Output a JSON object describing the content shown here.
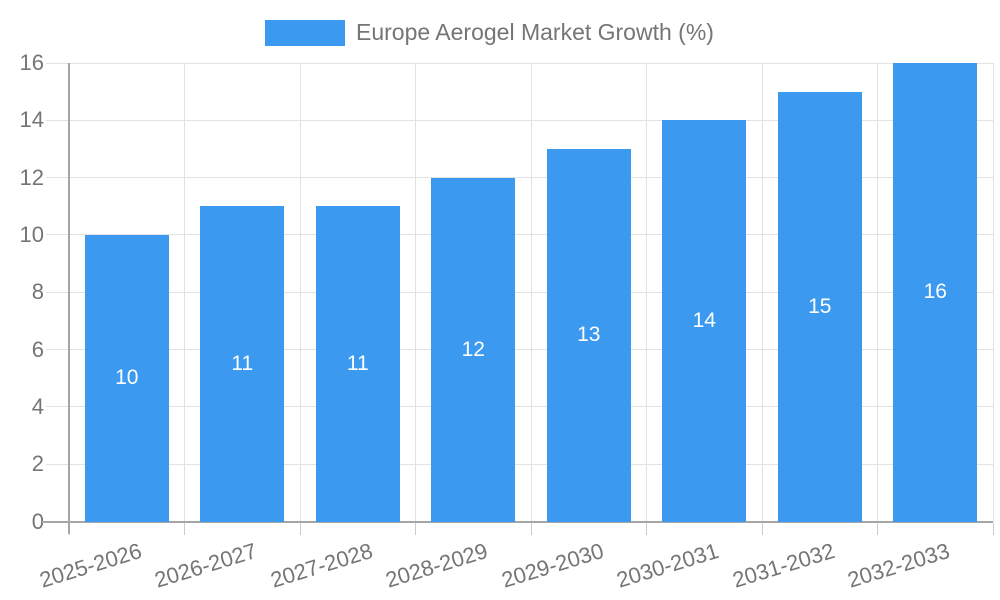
{
  "legend": {
    "label": "Europe Aerogel Market Growth (%)"
  },
  "chart_data": {
    "type": "bar",
    "title": "Europe Aerogel Market Growth (%)",
    "categories": [
      "2025-2026",
      "2026-2027",
      "2027-2028",
      "2028-2029",
      "2029-2030",
      "2030-2031",
      "2031-2032",
      "2032-2033"
    ],
    "values": [
      10,
      11,
      11,
      12,
      13,
      14,
      15,
      16
    ],
    "series": [
      {
        "name": "Europe Aerogel Market Growth (%)",
        "values": [
          10,
          11,
          11,
          12,
          13,
          14,
          15,
          16
        ]
      }
    ],
    "data_labels": [
      "10",
      "11",
      "11",
      "12",
      "13",
      "14",
      "15",
      "16"
    ],
    "xlabel": "",
    "ylabel": "",
    "ylim": [
      0,
      16
    ],
    "ytick_step": 2,
    "y_ticks": [
      0,
      2,
      4,
      6,
      8,
      10,
      12,
      14,
      16
    ],
    "grid": true,
    "legend_position": "top",
    "colors": {
      "bar": "#3b99ef",
      "bar_label": "#ffffff",
      "axis_text": "#757575",
      "grid_line": "#e2e2e2",
      "axis_line": "#a6a6a6",
      "tick_line": "#cccccc",
      "background": "#ffffff"
    }
  }
}
